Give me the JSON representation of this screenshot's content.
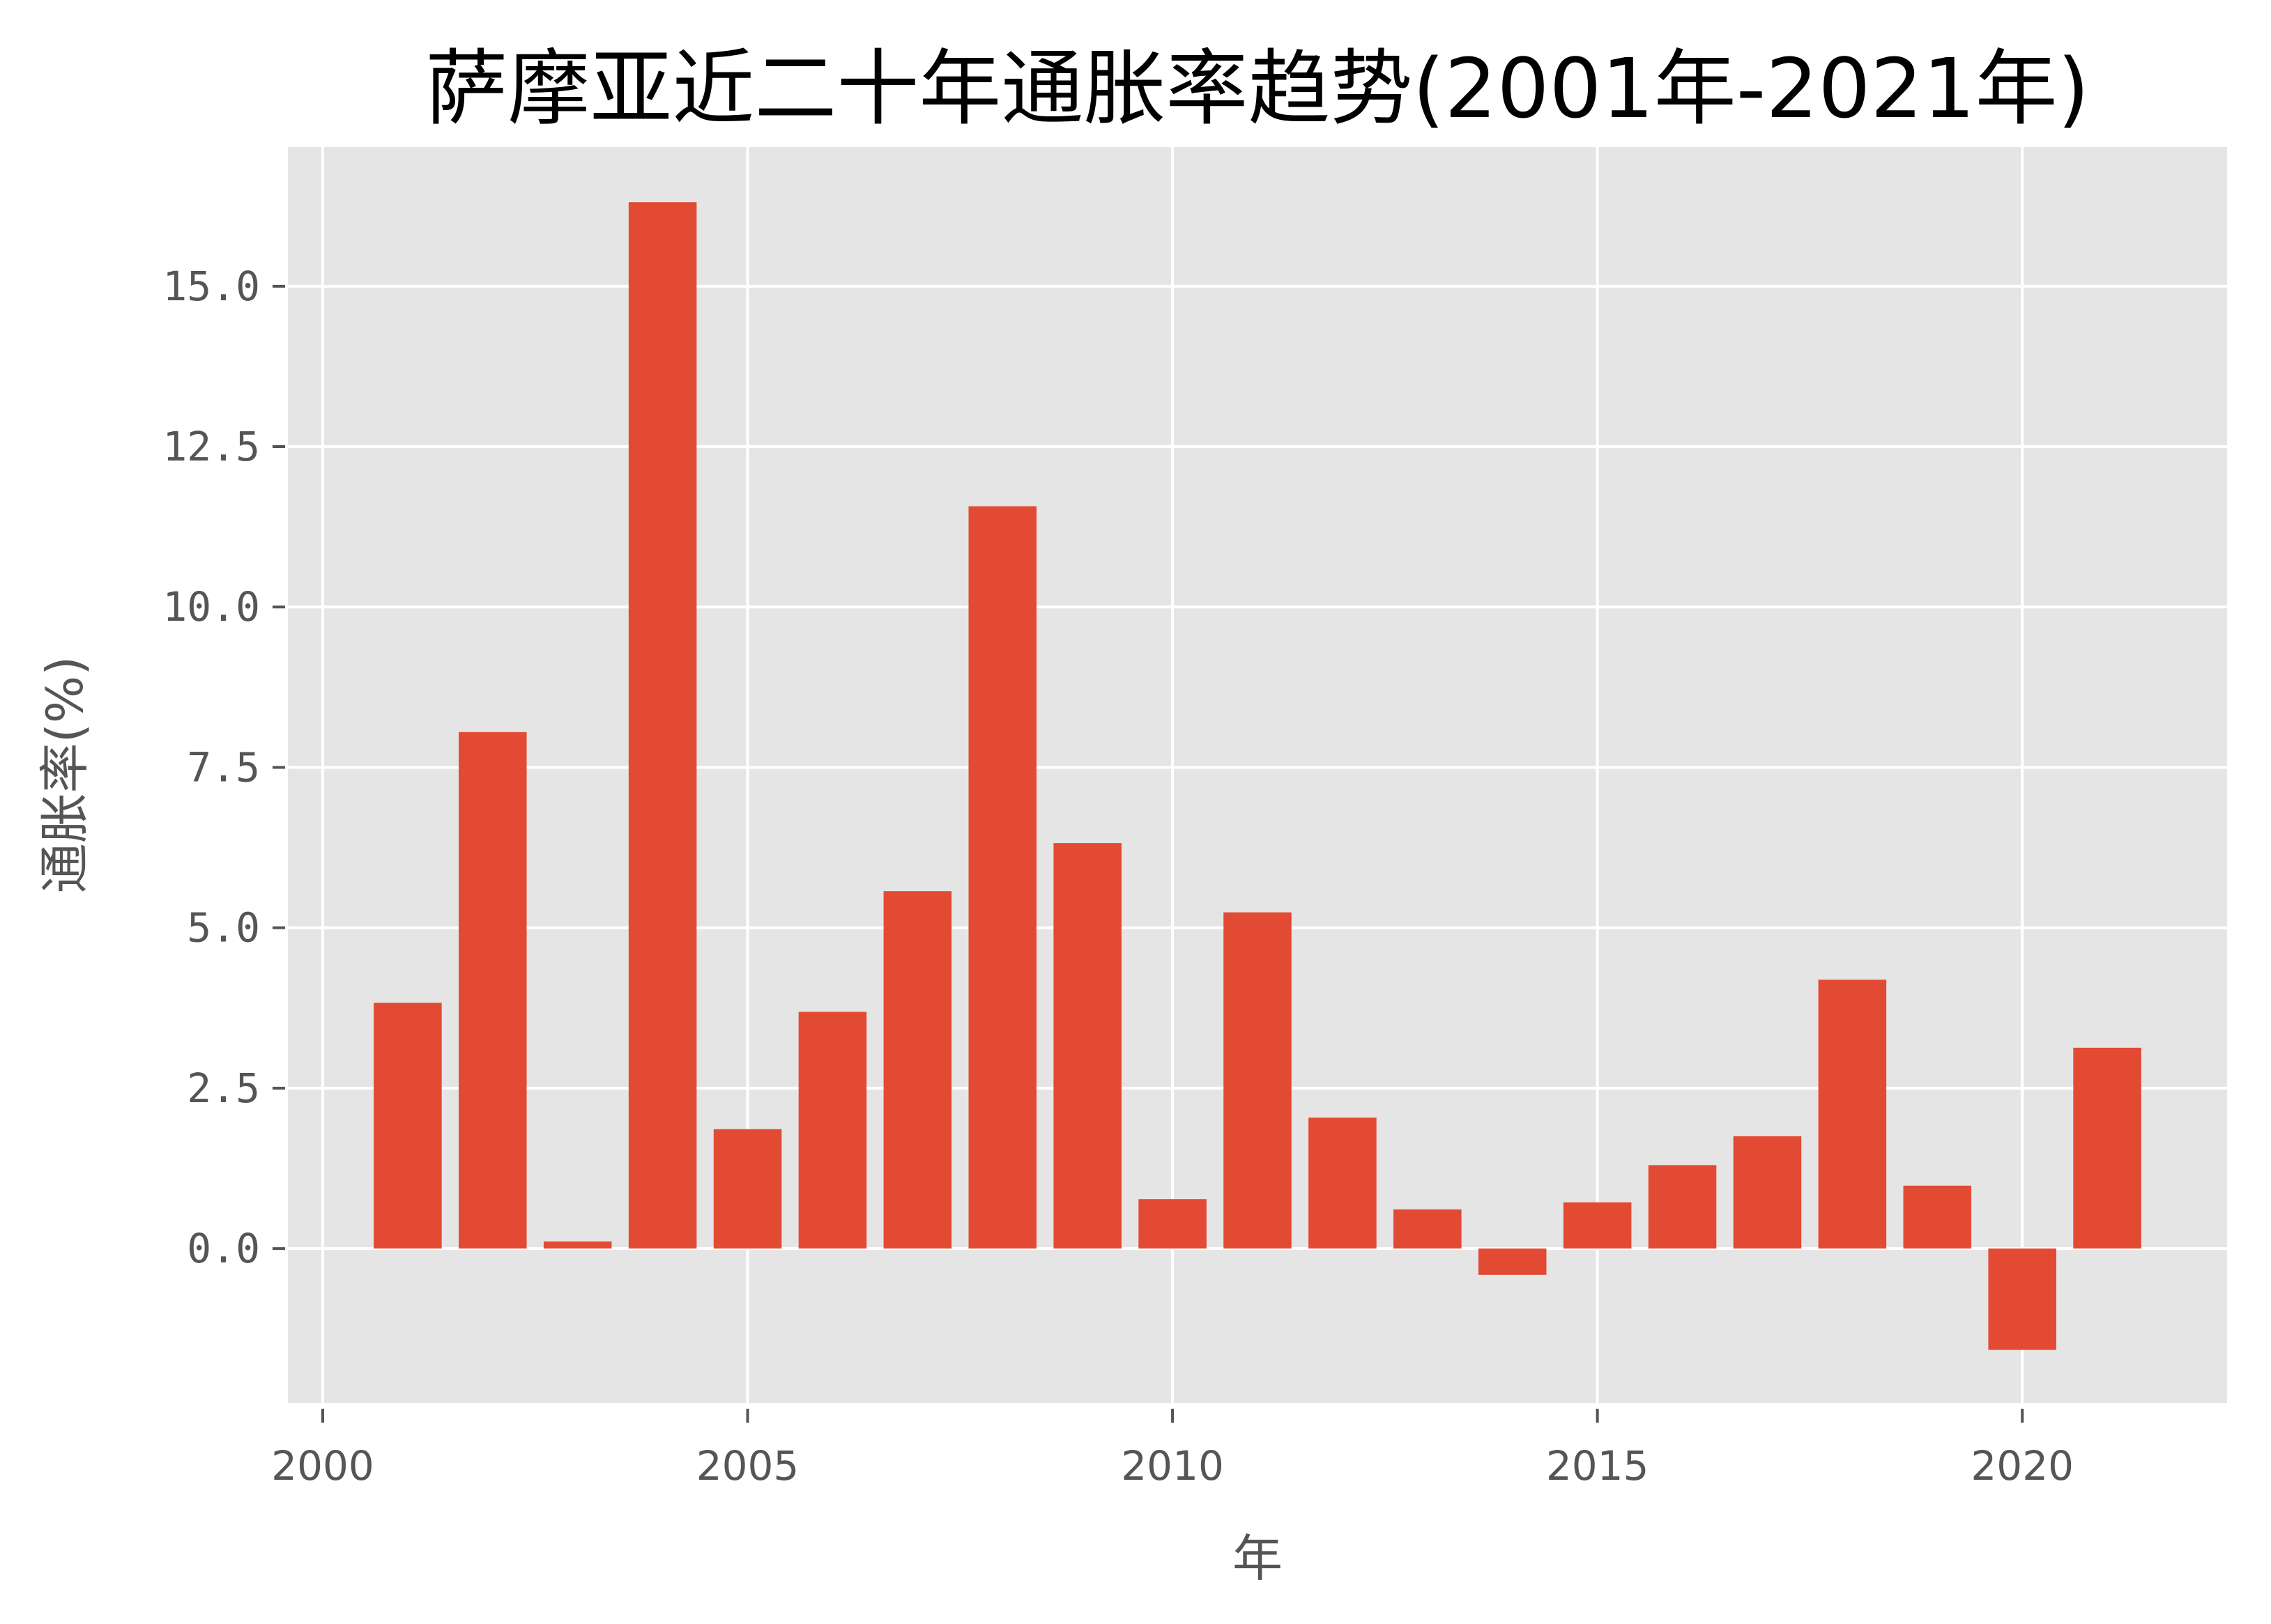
{
  "chart_data": {
    "type": "bar",
    "title": "萨摩亚近二十年通胀率趋势(2001年-2021年)",
    "xlabel": "年",
    "ylabel": "通胀率(%)",
    "categories": [
      2001,
      2002,
      2003,
      2004,
      2005,
      2006,
      2007,
      2008,
      2009,
      2010,
      2011,
      2012,
      2013,
      2014,
      2015,
      2016,
      2017,
      2018,
      2019,
      2020,
      2021
    ],
    "values": [
      3.83,
      8.05,
      0.11,
      16.31,
      1.86,
      3.69,
      5.57,
      11.57,
      6.32,
      0.77,
      5.24,
      2.04,
      0.61,
      -0.41,
      0.72,
      1.3,
      1.75,
      4.19,
      0.98,
      -1.58,
      3.13
    ],
    "xlim": [
      1999.59,
      2022.41
    ],
    "ylim": [
      -2.41,
      17.17
    ],
    "xticks": [
      2000,
      2005,
      2010,
      2015,
      2020
    ],
    "xtick_labels": [
      "2000",
      "2005",
      "2010",
      "2015",
      "2020"
    ],
    "yticks": [
      0.0,
      2.5,
      5.0,
      7.5,
      10.0,
      12.5,
      15.0
    ],
    "ytick_labels": [
      "0.0",
      "2.5",
      "5.0",
      "7.5",
      "10.0",
      "12.5",
      "15.0"
    ],
    "bar_width": 0.8,
    "grid": true,
    "legend": null,
    "style": "ggplot"
  },
  "colors": {
    "bar": "#E24A33",
    "plot_background": "#E5E5E5",
    "grid": "#FFFFFF",
    "tick_text": "#555555",
    "title_text": "#000000"
  }
}
